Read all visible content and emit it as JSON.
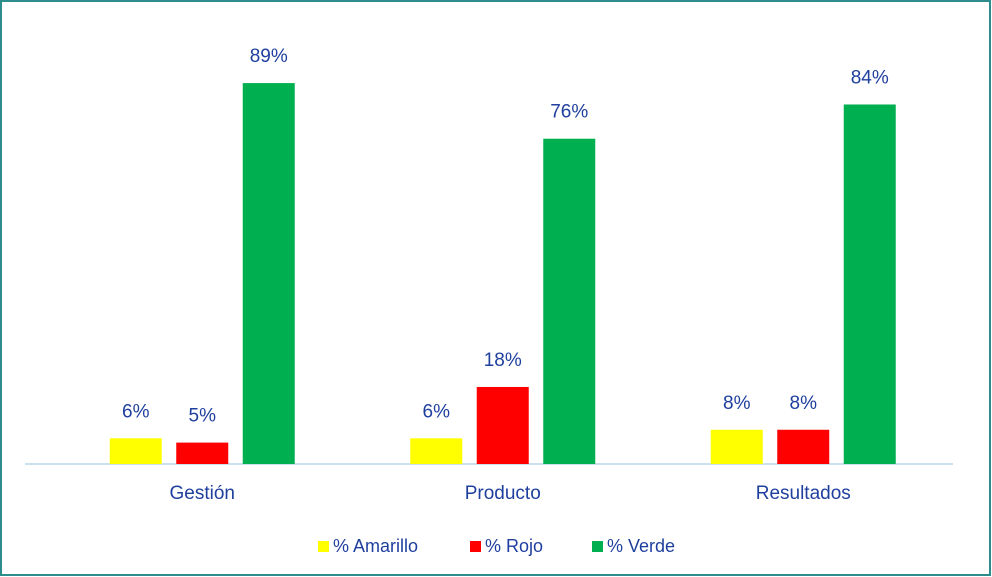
{
  "chart_data": {
    "type": "bar",
    "categories": [
      "Gestión",
      "Producto",
      "Resultados"
    ],
    "series": [
      {
        "name": "% Amarillo",
        "color": "#ffff00",
        "values": [
          6,
          6,
          8
        ],
        "value_labels": [
          "6%",
          "6%",
          "8%"
        ]
      },
      {
        "name": "% Rojo",
        "color": "#ff0000",
        "values": [
          5,
          18,
          8
        ],
        "value_labels": [
          "5%",
          "18%",
          "8%"
        ]
      },
      {
        "name": "% Verde",
        "color": "#00b050",
        "values": [
          89,
          76,
          84
        ],
        "value_labels": [
          "89%",
          "76%",
          "84%"
        ]
      }
    ],
    "legend": "bottom"
  }
}
